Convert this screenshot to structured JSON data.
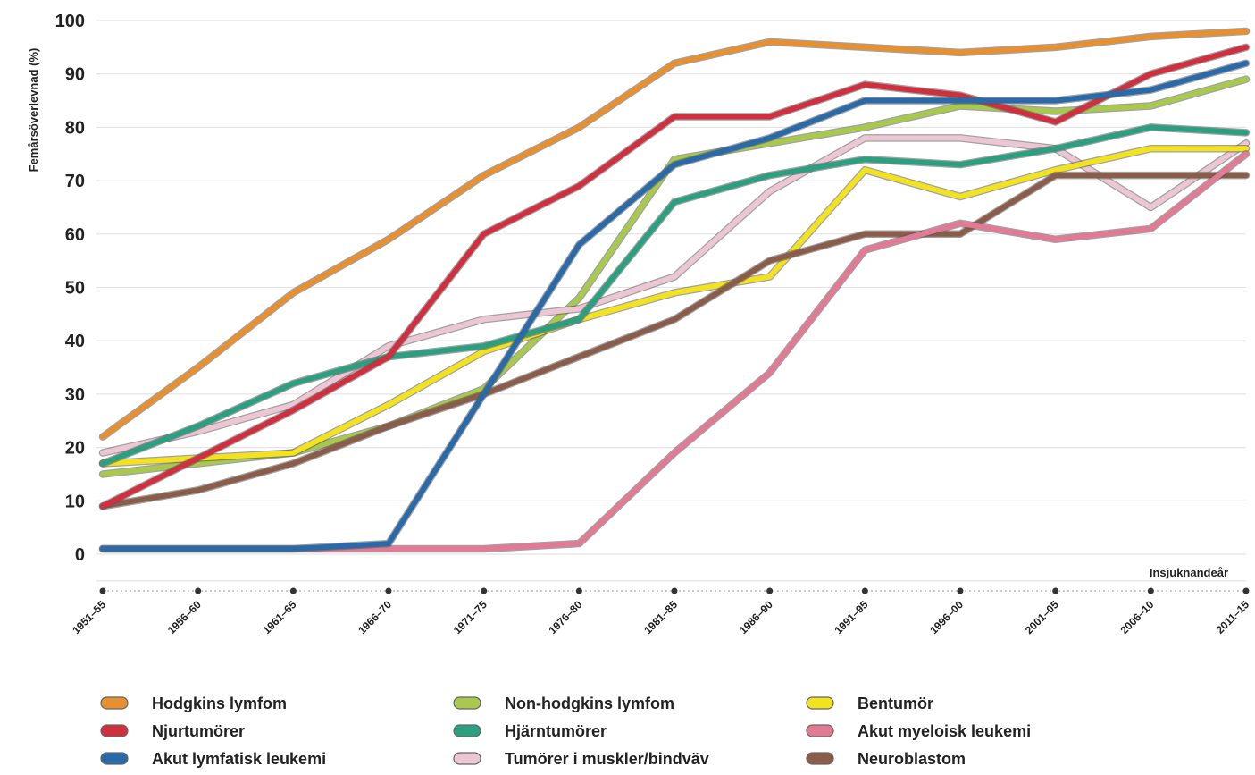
{
  "chart_data": {
    "type": "line",
    "ylabel": "Femårsöverlevnad (%)",
    "xlabel": "Insjuknandeår",
    "ylim": [
      0,
      100
    ],
    "yticks": [
      0,
      10,
      20,
      30,
      40,
      50,
      60,
      70,
      80,
      90,
      100
    ],
    "categories": [
      "1951–55",
      "1956–60",
      "1961–65",
      "1966–70",
      "1971–75",
      "1976–80",
      "1981–85",
      "1986–90",
      "1991–95",
      "1996–00",
      "2001–05",
      "2006–10",
      "2011–15"
    ],
    "grid": true,
    "legend_position": "bottom",
    "series": [
      {
        "name": "Hodgkins lymfom",
        "color": "#e8902f",
        "values": [
          22,
          35,
          49,
          59,
          71,
          80,
          92,
          96,
          95,
          94,
          95,
          97,
          98
        ]
      },
      {
        "name": "Non-hodgkins lymfom",
        "color": "#a9c94e",
        "values": [
          15,
          17,
          19,
          24,
          31,
          48,
          74,
          77,
          80,
          84,
          83,
          84,
          89
        ]
      },
      {
        "name": "Tumörer i muskler/bindväv",
        "color": "#ecc6d2",
        "values": [
          19,
          23,
          28,
          39,
          44,
          46,
          52,
          68,
          78,
          78,
          76,
          65,
          77
        ]
      },
      {
        "name": "Bentumör",
        "color": "#f3e21f",
        "values": [
          17,
          18,
          19,
          28,
          38,
          44,
          49,
          52,
          72,
          67,
          72,
          76,
          76
        ]
      },
      {
        "name": "Hjärntumörer",
        "color": "#2b9f80",
        "values": [
          17,
          24,
          32,
          37,
          39,
          44,
          66,
          71,
          74,
          73,
          76,
          80,
          79
        ]
      },
      {
        "name": "Neuroblastom",
        "color": "#8a5c4a",
        "values": [
          9,
          12,
          17,
          24,
          30,
          37,
          44,
          55,
          60,
          60,
          71,
          71,
          71
        ]
      },
      {
        "name": "Akut myeloisk leukemi",
        "color": "#e27a95",
        "values": [
          1,
          1,
          1,
          1,
          1,
          2,
          19,
          34,
          57,
          62,
          59,
          61,
          75
        ]
      },
      {
        "name": "Njurtumörer",
        "color": "#cf2f3e",
        "values": [
          9,
          18,
          27,
          37,
          60,
          69,
          82,
          82,
          88,
          86,
          81,
          90,
          95
        ]
      },
      {
        "name": "Akut lymfatisk leukemi",
        "color": "#2a6aa8",
        "values": [
          1,
          1,
          1,
          2,
          30,
          58,
          73,
          78,
          85,
          85,
          85,
          87,
          92
        ]
      }
    ],
    "legend_order": [
      "Hodgkins lymfom",
      "Non-hodgkins lymfom",
      "Bentumör",
      "Njurtumörer",
      "Hjärntumörer",
      "Akut myeloisk leukemi",
      "Akut lymfatisk leukemi",
      "Tumörer i muskler/bindväv",
      "Neuroblastom"
    ]
  }
}
